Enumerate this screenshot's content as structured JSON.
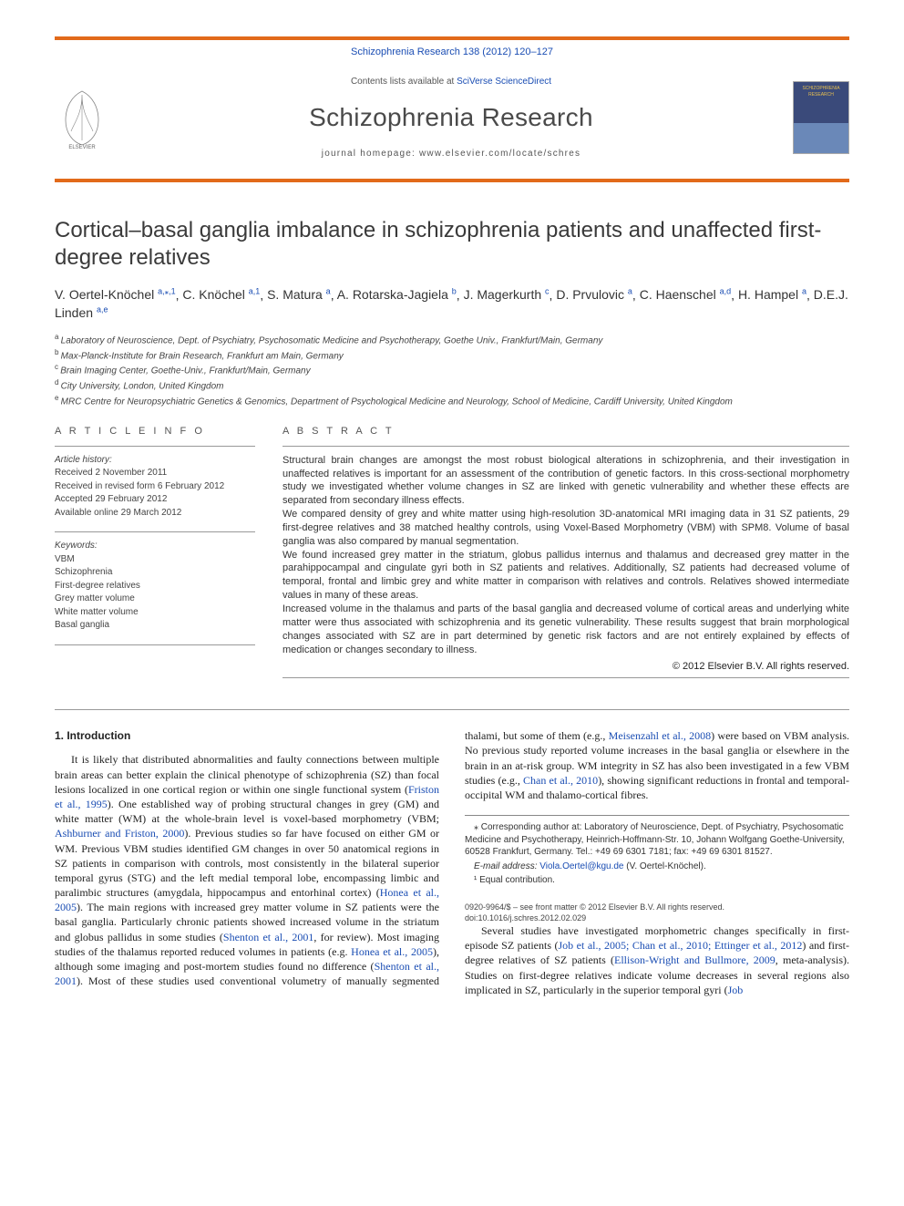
{
  "header": {
    "journalRef": "Schizophrenia Research 138 (2012) 120–127",
    "contentsPrefix": "Contents lists available at ",
    "contentsLink": "SciVerse ScienceDirect",
    "journalName": "Schizophrenia Research",
    "homepagePrefix": "journal homepage: ",
    "homepage": "www.elsevier.com/locate/schres",
    "coverLabel": "SCHIZOPHRENIA RESEARCH"
  },
  "title": "Cortical–basal ganglia imbalance in schizophrenia patients and unaffected first-degree relatives",
  "authors": [
    {
      "name": "V. Oertel-Knöchel",
      "aff": "a,",
      "marks": "⁎,1"
    },
    {
      "name": "C. Knöchel",
      "aff": "a,",
      "marks": "1"
    },
    {
      "name": "S. Matura",
      "aff": "a",
      "marks": ""
    },
    {
      "name": "A. Rotarska-Jagiela",
      "aff": "b",
      "marks": ""
    },
    {
      "name": "J. Magerkurth",
      "aff": "c",
      "marks": ""
    },
    {
      "name": "D. Prvulovic",
      "aff": "a",
      "marks": ""
    },
    {
      "name": "C. Haenschel",
      "aff": "a,d",
      "marks": ""
    },
    {
      "name": "H. Hampel",
      "aff": "a",
      "marks": ""
    },
    {
      "name": "D.E.J. Linden",
      "aff": "a,e",
      "marks": ""
    }
  ],
  "affiliations": [
    {
      "key": "a",
      "text": "Laboratory of Neuroscience, Dept. of Psychiatry, Psychosomatic Medicine and Psychotherapy, Goethe Univ., Frankfurt/Main, Germany"
    },
    {
      "key": "b",
      "text": "Max-Planck-Institute for Brain Research, Frankfurt am Main, Germany"
    },
    {
      "key": "c",
      "text": "Brain Imaging Center, Goethe-Univ., Frankfurt/Main, Germany"
    },
    {
      "key": "d",
      "text": "City University, London, United Kingdom"
    },
    {
      "key": "e",
      "text": "MRC Centre for Neuropsychiatric Genetics & Genomics, Department of Psychological Medicine and Neurology, School of Medicine, Cardiff University, United Kingdom"
    }
  ],
  "articleInfo": {
    "heading": "A R T I C L E    I N F O",
    "historyLabel": "Article history:",
    "history": [
      "Received 2 November 2011",
      "Received in revised form 6 February 2012",
      "Accepted 29 February 2012",
      "Available online 29 March 2012"
    ],
    "keywordsLabel": "Keywords:",
    "keywords": [
      "VBM",
      "Schizophrenia",
      "First-degree relatives",
      "Grey matter volume",
      "White matter volume",
      "Basal ganglia"
    ]
  },
  "abstract": {
    "heading": "A B S T R A C T",
    "paragraphs": [
      "Structural brain changes are amongst the most robust biological alterations in schizophrenia, and their investigation in unaffected relatives is important for an assessment of the contribution of genetic factors. In this cross-sectional morphometry study we investigated whether volume changes in SZ are linked with genetic vulnerability and whether these effects are separated from secondary illness effects.",
      "We compared density of grey and white matter using high-resolution 3D-anatomical MRI imaging data in 31 SZ patients, 29 first-degree relatives and 38 matched healthy controls, using Voxel-Based Morphometry (VBM) with SPM8. Volume of basal ganglia was also compared by manual segmentation.",
      "We found increased grey matter in the striatum, globus pallidus internus and thalamus and decreased grey matter in the parahippocampal and cingulate gyri both in SZ patients and relatives. Additionally, SZ patients had decreased volume of temporal, frontal and limbic grey and white matter in comparison with relatives and controls. Relatives showed intermediate values in many of these areas.",
      "Increased volume in the thalamus and parts of the basal ganglia and decreased volume of cortical areas and underlying white matter were thus associated with schizophrenia and its genetic vulnerability. These results suggest that brain morphological changes associated with SZ are in part determined by genetic risk factors and are not entirely explained by effects of medication or changes secondary to illness."
    ],
    "copyright": "© 2012 Elsevier B.V. All rights reserved."
  },
  "body": {
    "introHeading": "1. Introduction",
    "para1": {
      "t1": "It is likely that distributed abnormalities and faulty connections between multiple brain areas can better explain the clinical phenotype of schizophrenia (SZ) than focal lesions localized in one cortical region or within one single functional system (",
      "r1": "Friston et al., 1995",
      "t2": "). One established way of probing structural changes in grey (GM) and white matter (WM) at the whole-brain level is voxel-based morphometry (VBM; ",
      "r2": "Ashburner and Friston, 2000",
      "t3": "). Previous studies so far have focused on either GM or WM. Previous VBM studies identified GM changes in over 50 anatomical regions in SZ patients in comparison with controls, most consistently in the bilateral superior temporal gyrus (STG) and the left medial temporal lobe, encompassing limbic and paralimbic structures (amygdala, hippocampus and entorhinal cortex) (",
      "r3": "Honea et al., 2005",
      "t4": "). The main regions with increased grey matter volume in SZ patients were the basal ganglia. Particularly chronic patients showed increased volume in the striatum and globus pallidus in some studies (",
      "r4": "Shenton et al., 2001",
      "t5": ", for review). Most imaging studies of the thalamus reported reduced volumes in patients (e.g. ",
      "r5": "Honea et al., 2005",
      "t6": "), although some imaging and post-mortem studies found no difference (",
      "r6": "Shenton et al., 2001",
      "t7": "). Most of these studies used conventional volumetry of manually segmented thalami, but some of them (e.g., ",
      "r7": "Meisenzahl et al., 2008",
      "t8": ") were based on VBM analysis. No previous study reported volume increases in the basal ganglia or elsewhere in the brain in an at-risk group. WM integrity in SZ has also been investigated in a few VBM studies (e.g., ",
      "r8": "Chan et al., 2010",
      "t9": "), showing significant reductions in frontal and temporal-occipital WM and thalamo-cortical fibres."
    },
    "para2": {
      "t1": "Several studies have investigated morphometric changes specifically in first-episode SZ patients (",
      "r1": "Job et al., 2005; Chan et al., 2010; Ettinger et al., 2012",
      "t2": ") and first-degree relatives of SZ patients (",
      "r2": "Ellison-Wright and Bullmore, 2009",
      "t3": ", meta-analysis). Studies on first-degree relatives indicate volume decreases in several regions also implicated in SZ, particularly in the superior temporal gyri (",
      "r3": "Job"
    }
  },
  "footnotes": {
    "corr": "⁎ Corresponding author at: Laboratory of Neuroscience, Dept. of Psychiatry, Psychosomatic Medicine and Psychotherapy, Heinrich-Hoffmann-Str. 10, Johann Wolfgang Goethe-University, 60528 Frankfurt, Germany. Tel.: +49 69 6301 7181; fax: +49 69 6301 81527.",
    "emailLabel": "E-mail address:",
    "email": "Viola.Oertel@kgu.de",
    "emailSuffix": " (V. Oertel-Knöchel).",
    "equal": "¹ Equal contribution."
  },
  "footer": {
    "issn": "0920-9964/$ – see front matter © 2012 Elsevier B.V. All rights reserved.",
    "doi": "doi:10.1016/j.schres.2012.02.029"
  },
  "colors": {
    "accent": "#e26a1a",
    "link": "#1a4db3"
  }
}
